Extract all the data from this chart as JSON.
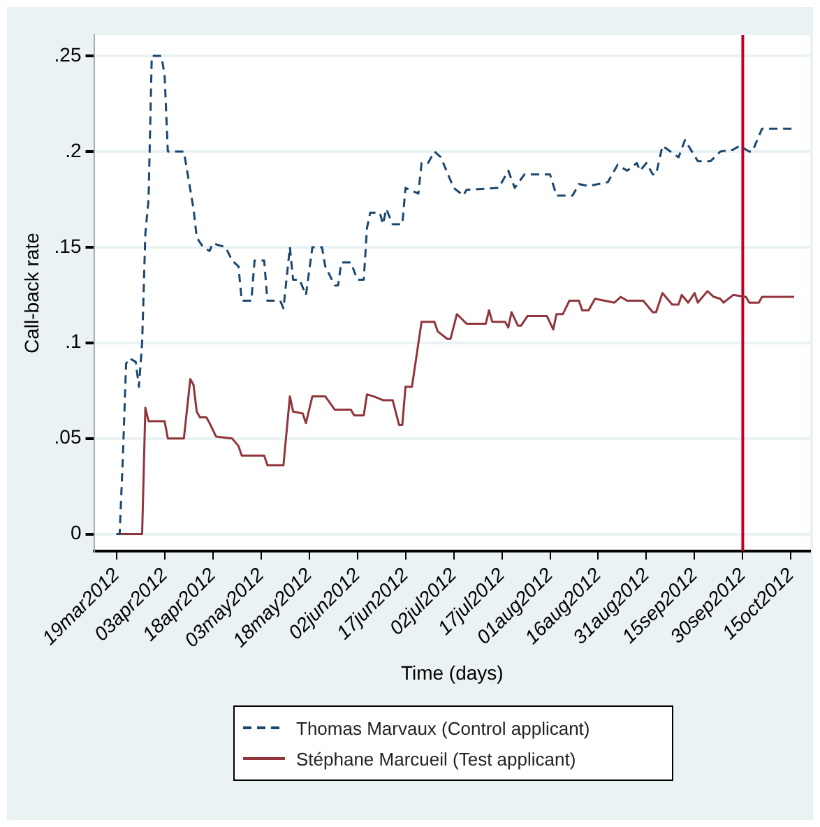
{
  "chart_data": {
    "type": "line",
    "xlabel": "Time (days)",
    "ylabel": "Call-back rate",
    "xlim": [
      "2012-03-12",
      "2012-10-21"
    ],
    "xticks": [
      {
        "value": "2012-03-19",
        "label": "19mar2012"
      },
      {
        "value": "2012-04-03",
        "label": "03apr2012"
      },
      {
        "value": "2012-04-18",
        "label": "18apr2012"
      },
      {
        "value": "2012-05-03",
        "label": "03may2012"
      },
      {
        "value": "2012-05-18",
        "label": "18may2012"
      },
      {
        "value": "2012-06-02",
        "label": "02jun2012"
      },
      {
        "value": "2012-06-17",
        "label": "17jun2012"
      },
      {
        "value": "2012-07-02",
        "label": "02jul2012"
      },
      {
        "value": "2012-07-17",
        "label": "17jul2012"
      },
      {
        "value": "2012-08-01",
        "label": "01aug2012"
      },
      {
        "value": "2012-08-16",
        "label": "16aug2012"
      },
      {
        "value": "2012-08-31",
        "label": "31aug2012"
      },
      {
        "value": "2012-09-15",
        "label": "15sep2012"
      },
      {
        "value": "2012-09-30",
        "label": "30sep2012"
      },
      {
        "value": "2012-10-15",
        "label": "15oct2012"
      }
    ],
    "ylim": [
      -0.009,
      0.261
    ],
    "yticks": [
      0,
      {
        "value": 0.05,
        "label": ".05"
      },
      {
        "value": 0.1,
        "label": ".1"
      },
      {
        "value": 0.15,
        "label": ".15"
      },
      {
        "value": 0.2,
        "label": ".2"
      },
      {
        "value": 0.25,
        "label": ".25"
      }
    ],
    "grid": "y",
    "legend": "bottom",
    "marker": "none",
    "ref_lines": [
      {
        "axis": "x",
        "value": "2012-09-30",
        "color": "#c0002a"
      }
    ],
    "series": [
      {
        "name": "Thomas Marvaux (Control applicant)",
        "color": "#1a476f",
        "line_style": "dashed",
        "x": [
          "2012-03-19",
          "2012-03-20",
          "2012-03-21",
          "2012-03-22",
          "2012-03-23",
          "2012-03-25",
          "2012-03-26",
          "2012-03-27",
          "2012-03-28",
          "2012-03-29",
          "2012-03-30",
          "2012-04-02",
          "2012-04-03",
          "2012-04-04",
          "2012-04-09",
          "2012-04-11",
          "2012-04-12",
          "2012-04-13",
          "2012-04-15",
          "2012-04-17",
          "2012-04-18",
          "2012-04-22",
          "2012-04-24",
          "2012-04-26",
          "2012-04-27",
          "2012-04-30",
          "2012-05-01",
          "2012-05-04",
          "2012-05-05",
          "2012-05-09",
          "2012-05-10",
          "2012-05-12",
          "2012-05-13",
          "2012-05-15",
          "2012-05-17",
          "2012-05-19",
          "2012-05-22",
          "2012-05-23",
          "2012-05-26",
          "2012-05-27",
          "2012-05-28",
          "2012-05-31",
          "2012-06-02",
          "2012-06-04",
          "2012-06-05",
          "2012-06-06",
          "2012-06-09",
          "2012-06-10",
          "2012-06-11",
          "2012-06-13",
          "2012-06-16",
          "2012-06-17",
          "2012-06-21",
          "2012-06-22",
          "2012-06-24",
          "2012-06-26",
          "2012-06-28",
          "2012-07-02",
          "2012-07-05",
          "2012-07-06",
          "2012-07-16",
          "2012-07-19",
          "2012-07-21",
          "2012-07-24",
          "2012-08-01",
          "2012-08-03",
          "2012-08-08",
          "2012-08-10",
          "2012-08-13",
          "2012-08-19",
          "2012-08-22",
          "2012-08-25",
          "2012-08-28",
          "2012-08-29",
          "2012-08-31",
          "2012-09-02",
          "2012-09-03",
          "2012-09-05",
          "2012-09-10",
          "2012-09-12",
          "2012-09-16",
          "2012-09-20",
          "2012-09-23",
          "2012-09-27",
          "2012-09-29",
          "2012-10-02",
          "2012-10-03",
          "2012-10-06",
          "2012-10-16"
        ],
        "values": [
          0,
          0,
          0.04,
          0.089,
          0.092,
          0.09,
          0.077,
          0.1,
          0.157,
          0.175,
          0.25,
          0.25,
          0.24,
          0.2,
          0.2,
          0.18,
          0.17,
          0.155,
          0.15,
          0.148,
          0.152,
          0.15,
          0.143,
          0.14,
          0.122,
          0.122,
          0.143,
          0.143,
          0.122,
          0.122,
          0.118,
          0.15,
          0.133,
          0.133,
          0.125,
          0.15,
          0.15,
          0.14,
          0.13,
          0.13,
          0.142,
          0.142,
          0.133,
          0.133,
          0.16,
          0.168,
          0.168,
          0.162,
          0.17,
          0.162,
          0.162,
          0.181,
          0.178,
          0.194,
          0.194,
          0.2,
          0.197,
          0.181,
          0.177,
          0.18,
          0.181,
          0.19,
          0.181,
          0.188,
          0.188,
          0.177,
          0.177,
          0.183,
          0.182,
          0.184,
          0.193,
          0.19,
          0.194,
          0.19,
          0.194,
          0.188,
          0.188,
          0.203,
          0.197,
          0.206,
          0.195,
          0.195,
          0.2,
          0.201,
          0.203,
          0.2,
          0.2,
          0.212,
          0.212
        ]
      },
      {
        "name": "Stéphane Marcueil (Test applicant)",
        "color": "#90353b",
        "line_style": "solid",
        "x": [
          "2012-03-19",
          "2012-03-27",
          "2012-03-28",
          "2012-03-29",
          "2012-04-03",
          "2012-04-04",
          "2012-04-09",
          "2012-04-11",
          "2012-04-12",
          "2012-04-13",
          "2012-04-14",
          "2012-04-16",
          "2012-04-17",
          "2012-04-19",
          "2012-04-24",
          "2012-04-26",
          "2012-04-27",
          "2012-05-04",
          "2012-05-05",
          "2012-05-10",
          "2012-05-12",
          "2012-05-13",
          "2012-05-16",
          "2012-05-17",
          "2012-05-19",
          "2012-05-23",
          "2012-05-26",
          "2012-05-31",
          "2012-06-01",
          "2012-06-04",
          "2012-06-05",
          "2012-06-07",
          "2012-06-10",
          "2012-06-13",
          "2012-06-15",
          "2012-06-16",
          "2012-06-17",
          "2012-06-19",
          "2012-06-22",
          "2012-06-26",
          "2012-06-27",
          "2012-06-30",
          "2012-07-01",
          "2012-07-03",
          "2012-07-06",
          "2012-07-12",
          "2012-07-13",
          "2012-07-14",
          "2012-07-18",
          "2012-07-19",
          "2012-07-20",
          "2012-07-22",
          "2012-07-23",
          "2012-07-25",
          "2012-07-31",
          "2012-08-02",
          "2012-08-03",
          "2012-08-05",
          "2012-08-07",
          "2012-08-10",
          "2012-08-11",
          "2012-08-13",
          "2012-08-15",
          "2012-08-21",
          "2012-08-23",
          "2012-08-25",
          "2012-08-30",
          "2012-09-02",
          "2012-09-03",
          "2012-09-05",
          "2012-09-08",
          "2012-09-10",
          "2012-09-11",
          "2012-09-13",
          "2012-09-15",
          "2012-09-16",
          "2012-09-19",
          "2012-09-21",
          "2012-09-23",
          "2012-09-24",
          "2012-09-27",
          "2012-10-01",
          "2012-10-02",
          "2012-10-05",
          "2012-10-06",
          "2012-10-16"
        ],
        "values": [
          0,
          0,
          0.066,
          0.059,
          0.059,
          0.05,
          0.05,
          0.081,
          0.078,
          0.064,
          0.061,
          0.061,
          0.058,
          0.051,
          0.05,
          0.046,
          0.041,
          0.041,
          0.036,
          0.036,
          0.072,
          0.064,
          0.063,
          0.058,
          0.072,
          0.072,
          0.065,
          0.065,
          0.062,
          0.062,
          0.073,
          0.072,
          0.07,
          0.07,
          0.057,
          0.057,
          0.077,
          0.077,
          0.111,
          0.111,
          0.106,
          0.102,
          0.102,
          0.115,
          0.11,
          0.11,
          0.117,
          0.111,
          0.111,
          0.108,
          0.116,
          0.109,
          0.109,
          0.114,
          0.114,
          0.107,
          0.115,
          0.115,
          0.122,
          0.122,
          0.117,
          0.117,
          0.123,
          0.121,
          0.124,
          0.122,
          0.122,
          0.116,
          0.116,
          0.126,
          0.12,
          0.12,
          0.125,
          0.121,
          0.126,
          0.121,
          0.127,
          0.124,
          0.123,
          0.121,
          0.125,
          0.124,
          0.121,
          0.121,
          0.124,
          0.124
        ]
      }
    ]
  }
}
